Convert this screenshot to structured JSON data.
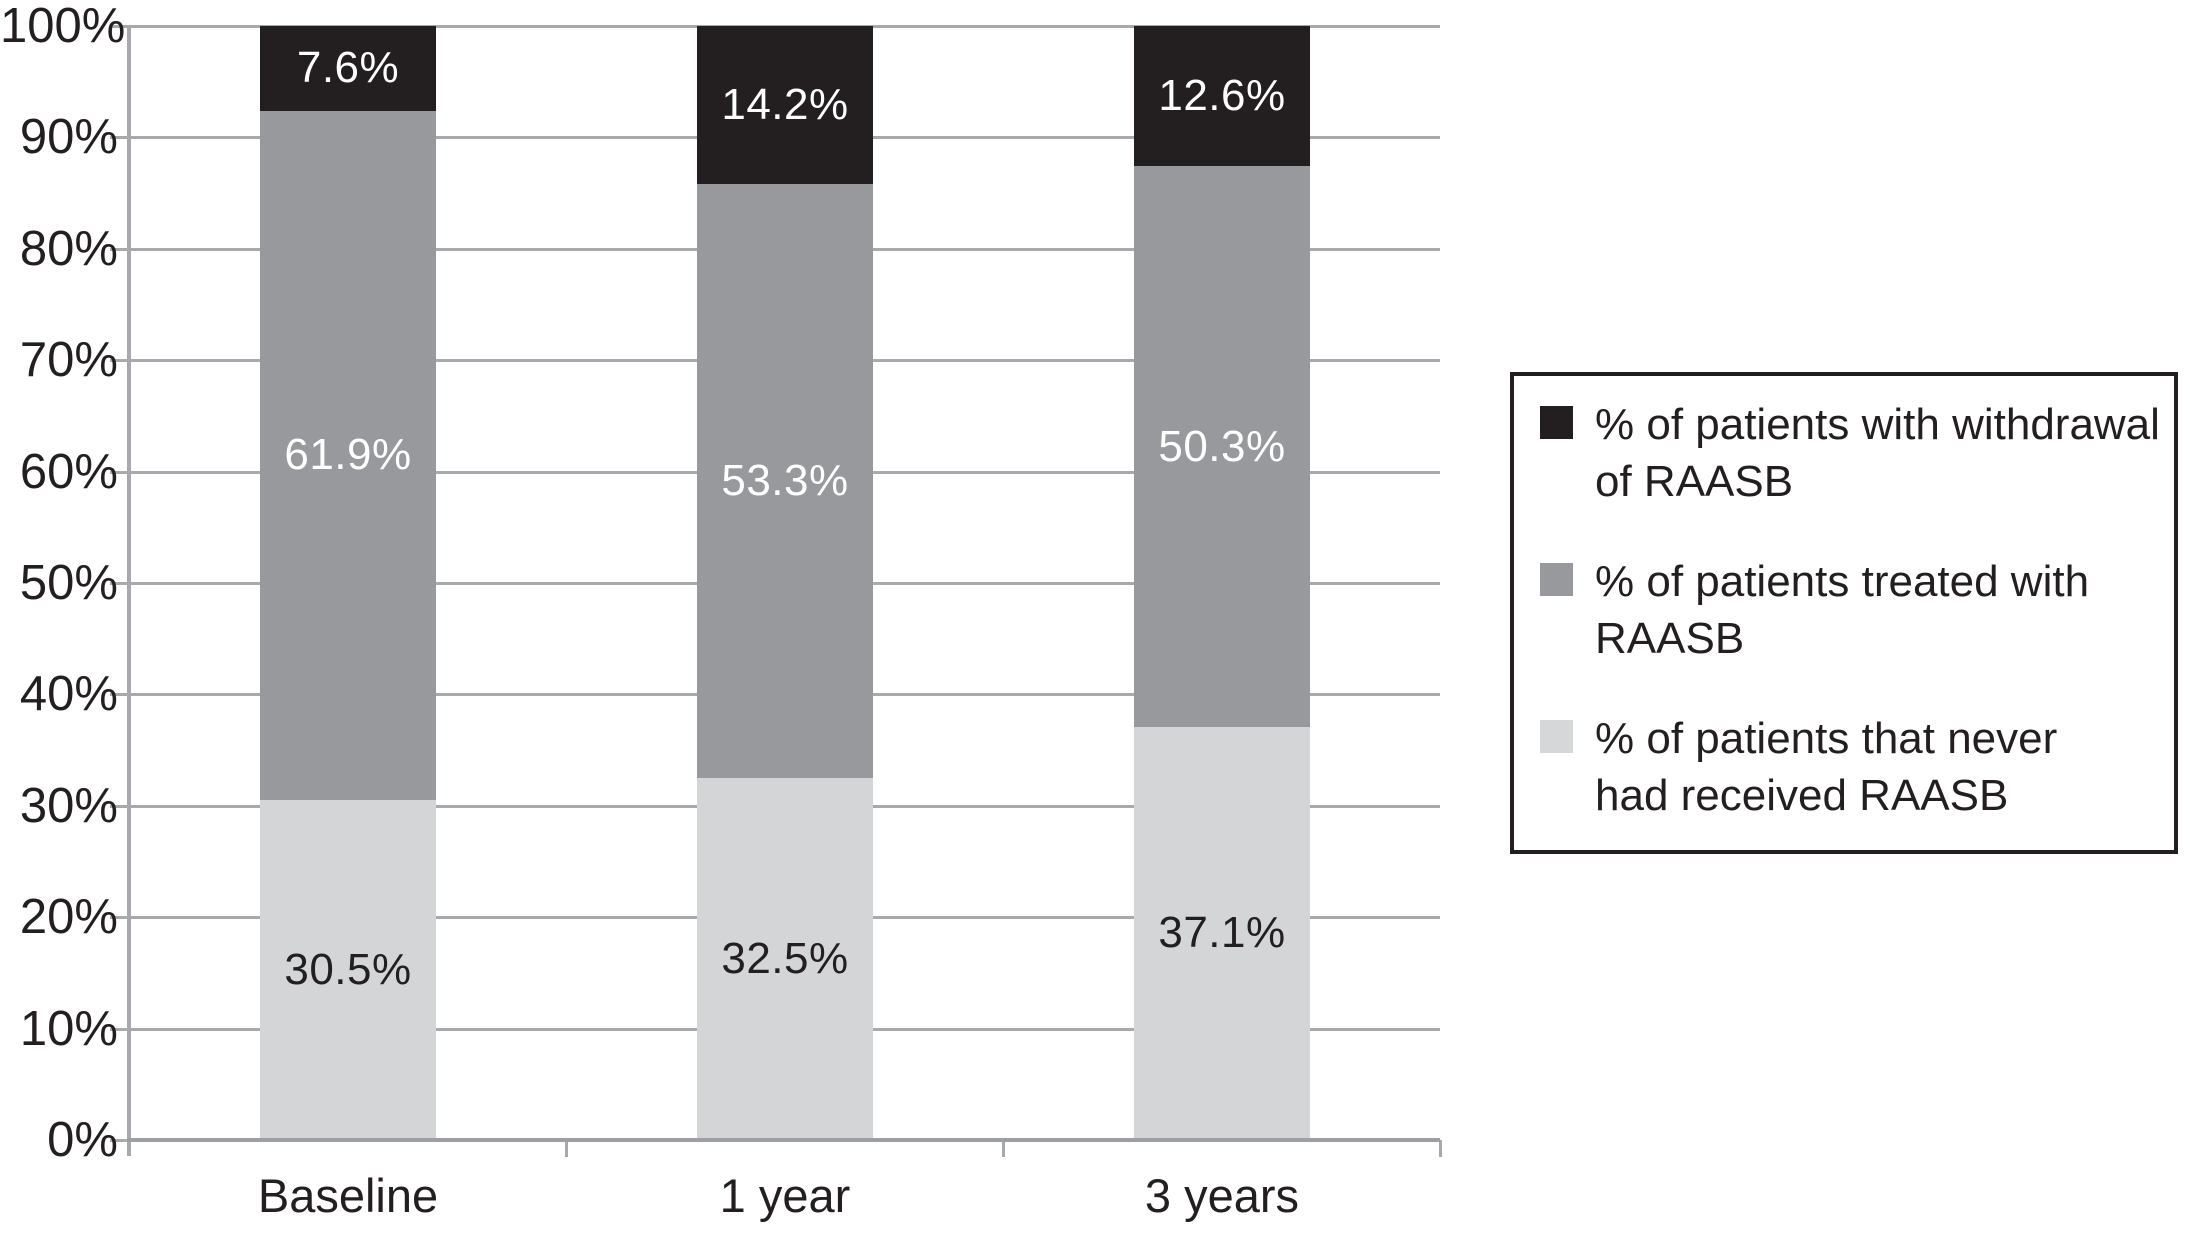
{
  "figure": {
    "background": "#ffffff",
    "text_color": "#231f20"
  },
  "chart_data": {
    "type": "bar",
    "stacked": true,
    "stack_order": "bottom-to-top",
    "categories": [
      "Baseline",
      "1 year",
      "3 years"
    ],
    "series": [
      {
        "name": "% of patients that never had received RAASB",
        "color": "#d3d5d6",
        "label_color": "#231f20",
        "values": [
          30.5,
          32.5,
          37.1
        ],
        "labels": [
          "30.5%",
          "32.5%",
          "37.1%"
        ]
      },
      {
        "name": "% of patients treated with RAASB",
        "color": "#97999c",
        "label_color": "#ffffff",
        "values": [
          61.9,
          53.3,
          50.3
        ],
        "labels": [
          "61.9%",
          "53.3%",
          "50.3%"
        ]
      },
      {
        "name": "% of patients with withdrawal of RAASB",
        "color": "#231f20",
        "label_color": "#ffffff",
        "values": [
          7.6,
          14.2,
          12.6
        ],
        "labels": [
          "7.6%",
          "14.2%",
          "12.6%"
        ]
      }
    ],
    "title": "",
    "xlabel": "",
    "ylabel": "",
    "ylim": [
      0,
      100
    ],
    "y_tick_step": 10,
    "y_tick_labels": [
      "100%",
      "90%",
      "80%",
      "70%",
      "60%",
      "50%",
      "40%",
      "30%",
      "20%",
      "10%",
      "0%"
    ],
    "grid": "horizontal",
    "gridline_color": "#a7a9ac",
    "axis_color": "#9d9fa2",
    "legend_position": "right"
  },
  "legend": {
    "border_color": "#231f20",
    "items": [
      {
        "swatch_color": "#231f20",
        "lines": [
          "% of patients with withdrawal",
          "of RAASB"
        ]
      },
      {
        "swatch_color": "#97999c",
        "lines": [
          "% of patients treated with",
          "RAASB"
        ]
      },
      {
        "swatch_color": "#d6d7d8",
        "lines": [
          "% of patients that never",
          "had received RAASB"
        ]
      }
    ]
  }
}
